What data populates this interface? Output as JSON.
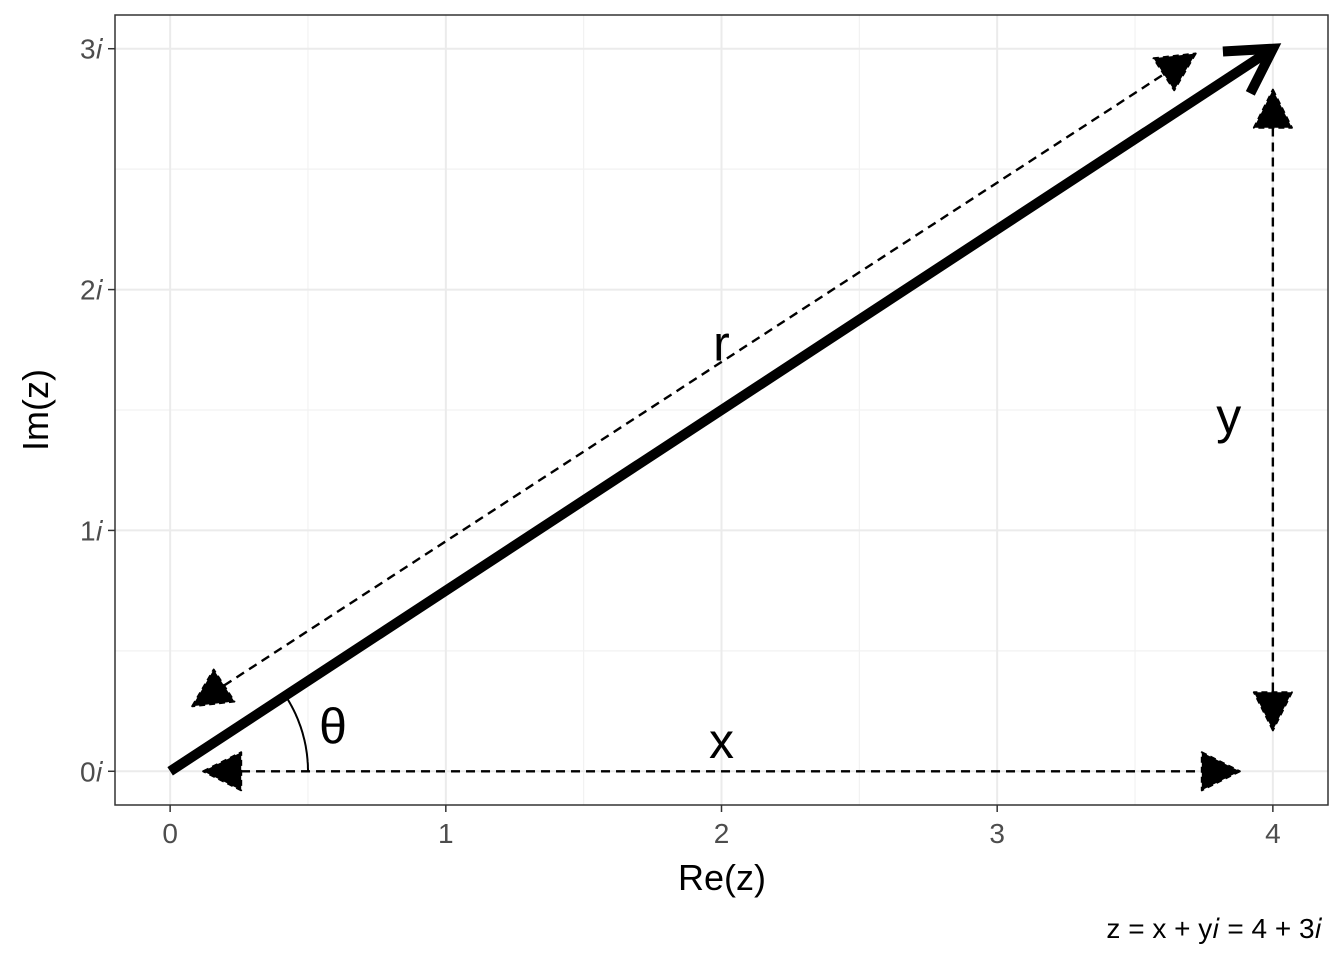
{
  "chart_data": {
    "type": "line",
    "xlabel": "Re(z)",
    "ylabel": "Im(z)",
    "xlim": [
      -0.2,
      4.2
    ],
    "ylim": [
      -0.14,
      3.14
    ],
    "x_ticks": [
      0,
      1,
      2,
      3,
      4
    ],
    "x_tick_labels": [
      "0",
      "1",
      "2",
      "3",
      "4"
    ],
    "y_ticks": [
      0,
      1,
      2,
      3
    ],
    "y_tick_labels": [
      "0𝑖",
      "1𝑖",
      "2𝑖",
      "3𝑖"
    ],
    "grid": true,
    "vector": {
      "from": [
        0,
        0
      ],
      "to": [
        4,
        3
      ]
    },
    "arc_theta": {
      "center": [
        0,
        0
      ],
      "radius": 0.5,
      "from_deg": 0,
      "to_deg": 36.87
    },
    "dimension_lines": [
      {
        "label": "r",
        "from": [
          0.08,
          0.27
        ],
        "to": [
          3.72,
          2.98
        ],
        "label_at": [
          2.0,
          1.78
        ]
      },
      {
        "label": "x",
        "from": [
          0.12,
          0.0
        ],
        "to": [
          3.88,
          0.0
        ],
        "label_at": [
          2.0,
          0.13
        ]
      },
      {
        "label": "y",
        "from": [
          4.0,
          2.83
        ],
        "to": [
          4.0,
          0.17
        ],
        "label_at": [
          3.84,
          1.48
        ]
      }
    ],
    "annotations": [
      {
        "label": "θ",
        "at": [
          0.5,
          0.19
        ]
      }
    ],
    "caption": "z = x + y𝑖 = 4 + 3𝑖"
  }
}
